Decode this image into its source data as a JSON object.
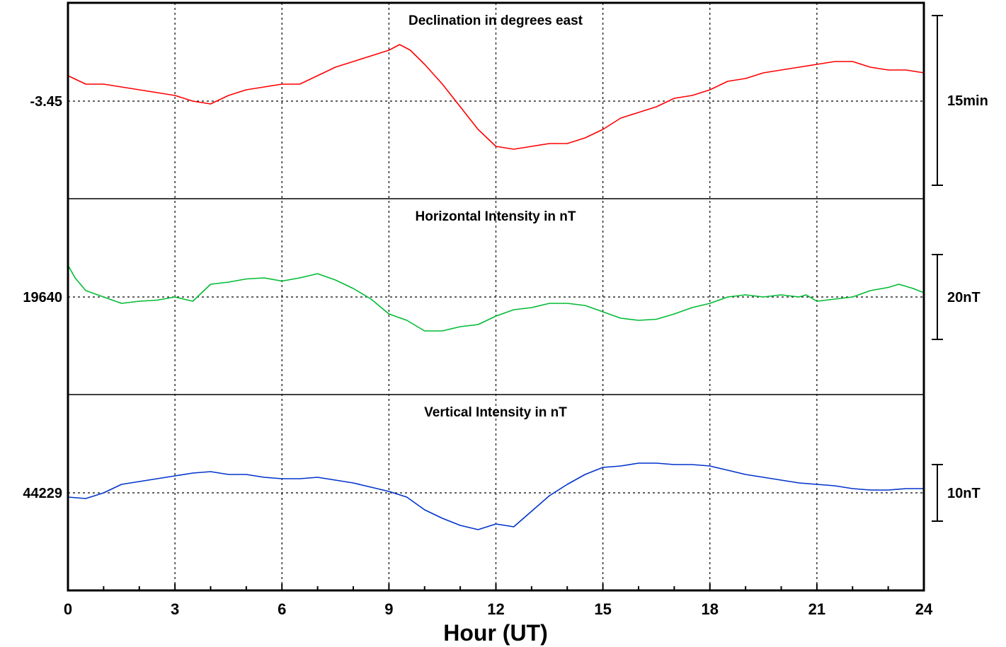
{
  "chart_data": {
    "type": "line",
    "xlabel": "Hour (UT)",
    "xlim": [
      0,
      24
    ],
    "x_ticks": [
      "0",
      "3",
      "6",
      "9",
      "12",
      "15",
      "18",
      "21",
      "24"
    ],
    "grid": true,
    "panels": [
      {
        "title": "Declination in degrees east",
        "baseline_label": "-3.45",
        "scale_label": "15min",
        "color": "#ff0000",
        "series": [
          {
            "x": [
              0,
              0.5,
              1,
              1.5,
              2,
              2.5,
              3,
              3.5,
              4,
              4.5,
              5,
              5.5,
              6,
              6.5,
              7,
              7.5,
              8,
              8.5,
              9,
              9.3,
              9.6,
              10,
              10.5,
              11,
              11.5,
              12,
              12.5,
              13,
              13.5,
              14,
              14.5,
              15,
              15.5,
              16,
              16.5,
              17,
              17.5,
              18,
              18.5,
              19,
              19.5,
              20,
              20.5,
              21,
              21.5,
              22,
              22.5,
              23,
              23.5,
              24
            ],
            "y": [
              4.5,
              3.0,
              3.0,
              2.5,
              2.0,
              1.5,
              1.0,
              0,
              -0.5,
              1.0,
              2.0,
              2.5,
              3.0,
              3.0,
              4.5,
              6.0,
              7.0,
              8.0,
              9.0,
              10.0,
              9.0,
              6.5,
              3.0,
              -1.0,
              -5.0,
              -8.0,
              -8.5,
              -8.0,
              -7.5,
              -7.5,
              -6.5,
              -5.0,
              -3.0,
              -2.0,
              -1.0,
              0.5,
              1.0,
              2.0,
              3.5,
              4.0,
              5.0,
              5.5,
              6.0,
              6.5,
              7.0,
              7.0,
              6.0,
              5.5,
              5.5,
              5.0
            ]
          }
        ]
      },
      {
        "title": "Horizontal Intensity in nT",
        "baseline_label": "19640",
        "scale_label": "20nT",
        "color": "#00bb33",
        "series": [
          {
            "x": [
              0,
              0.2,
              0.5,
              1,
              1.5,
              2,
              2.5,
              3,
              3.5,
              4,
              4.5,
              5,
              5.5,
              6,
              6.5,
              7,
              7.5,
              8,
              8.5,
              9,
              9.5,
              10,
              10.5,
              11,
              11.5,
              12,
              12.5,
              13,
              13.5,
              14,
              14.5,
              15,
              15.5,
              16,
              16.5,
              17,
              17.5,
              18,
              18.5,
              19,
              19.5,
              20,
              20.5,
              20.7,
              21,
              21.5,
              22,
              22.5,
              23,
              23.3,
              23.7,
              24
            ],
            "y": [
              15,
              9,
              3,
              0,
              -3,
              -2,
              -1.5,
              0,
              -2,
              6,
              7,
              8.5,
              9,
              7.5,
              9,
              11,
              8,
              4,
              -1,
              -8,
              -11,
              -16,
              -16,
              -14,
              -13,
              -9,
              -6,
              -5,
              -3,
              -3,
              -4,
              -7,
              -10,
              -11,
              -10.5,
              -8,
              -5,
              -3,
              0,
              1,
              0,
              1,
              0,
              1,
              -2,
              -1,
              0,
              3,
              4.5,
              6,
              4,
              2
            ]
          }
        ]
      },
      {
        "title": "Vertical Intensity in nT",
        "baseline_label": "44229",
        "scale_label": "10nT",
        "color": "#0033cc",
        "series": [
          {
            "x": [
              0,
              0.5,
              1,
              1.5,
              2,
              2.5,
              3,
              3.5,
              4,
              4.5,
              5,
              5.5,
              6,
              6.5,
              7,
              7.5,
              8,
              8.5,
              9,
              9.5,
              10,
              10.5,
              11,
              11.5,
              12,
              12.5,
              13,
              13.5,
              14,
              14.5,
              15,
              15.5,
              16,
              16.5,
              17,
              17.5,
              18,
              18.5,
              19,
              19.5,
              20,
              20.5,
              21,
              21.5,
              22,
              22.5,
              23,
              23.5,
              24
            ],
            "y": [
              -1.5,
              -2.0,
              0,
              3.0,
              4.0,
              5.0,
              6.0,
              7.0,
              7.5,
              6.5,
              6.5,
              5.5,
              5.0,
              5.0,
              5.5,
              4.5,
              3.5,
              2.0,
              0.5,
              -1.5,
              -6.0,
              -9.0,
              -11.5,
              -13.0,
              -11.0,
              -12.0,
              -6.5,
              -1.0,
              3.0,
              6.5,
              9.0,
              9.5,
              10.5,
              10.5,
              10.0,
              10.0,
              9.5,
              8.0,
              6.5,
              5.5,
              4.5,
              3.5,
              3.0,
              2.5,
              1.5,
              1.0,
              1.0,
              1.5,
              1.5
            ]
          }
        ]
      }
    ]
  }
}
